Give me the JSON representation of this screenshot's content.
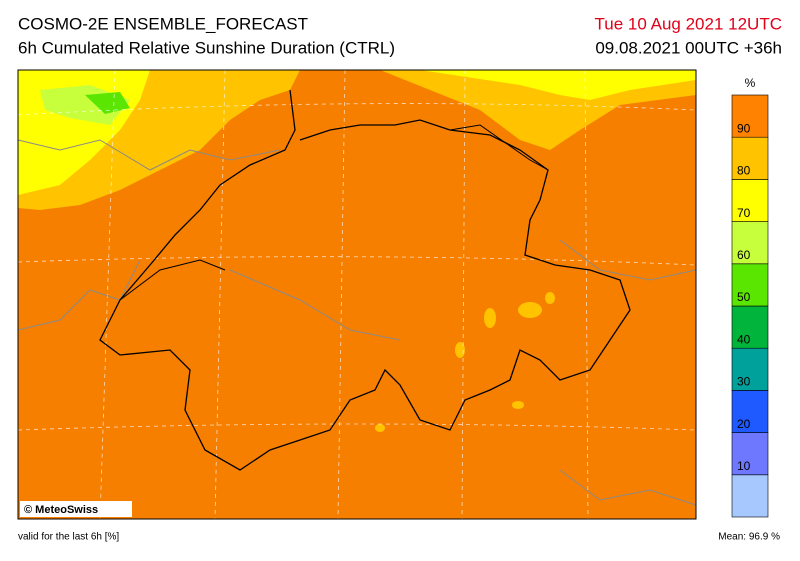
{
  "header": {
    "title": "COSMO-2E ENSEMBLE_FORECAST",
    "subtitle": "6h Cumulated Relative Sunshine Duration (CTRL)",
    "valid_time": "Tue 10 Aug 2021 12UTC",
    "run": "09.08.2021 00UTC +36h"
  },
  "legend": {
    "unit": "%",
    "labels": [
      "10",
      "20",
      "30",
      "40",
      "50",
      "60",
      "70",
      "80",
      "90"
    ],
    "colors": [
      "#a6c8ff",
      "#6e78ff",
      "#1e5aff",
      "#00a09b",
      "#00b43c",
      "#5ae600",
      "#c8ff3c",
      "#ffff00",
      "#ffc300",
      "#ff8200"
    ]
  },
  "map": {
    "credit": "© MeteoSwiss"
  },
  "footer": {
    "validity": "valid for the last 6h [%]",
    "mean": "Mean:  96.9 %"
  }
}
